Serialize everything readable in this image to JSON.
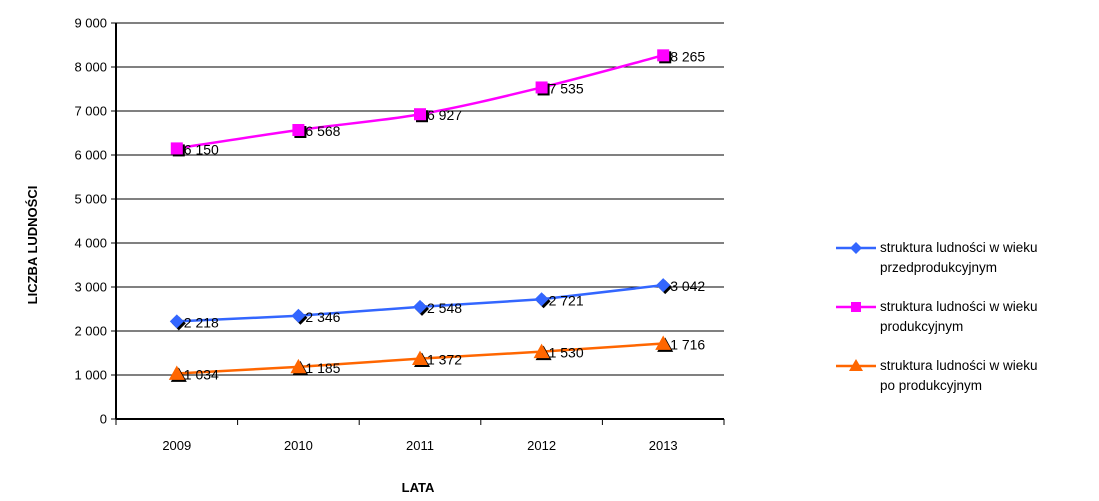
{
  "chart_data": {
    "type": "line",
    "title": "",
    "xlabel": "LATA",
    "ylabel": "LICZBA LUDNOŚCI",
    "categories": [
      "2009",
      "2010",
      "2011",
      "2012",
      "2013"
    ],
    "ylim": [
      0,
      9000
    ],
    "ytick_values": [
      0,
      1000,
      2000,
      3000,
      4000,
      5000,
      6000,
      7000,
      8000,
      9000
    ],
    "ytick_labels": [
      "0",
      "1 000",
      "2 000",
      "3 000",
      "4 000",
      "5 000",
      "6 000",
      "7 000",
      "8 000",
      "9 000"
    ],
    "grid": true,
    "legend_position": "right",
    "series": [
      {
        "name": "struktura ludności w wieku przedprodukcyjnym",
        "legend_lines": [
          "struktura ludności w wieku",
          "przedprodukcyjnym"
        ],
        "color": "#3366FF",
        "marker": "diamond",
        "values": [
          2218,
          2346,
          2548,
          2721,
          3042
        ],
        "labels": [
          "2 218",
          "2 346",
          "2 548",
          "2 721",
          "3 042"
        ]
      },
      {
        "name": "struktura ludności w wieku produkcyjnym",
        "legend_lines": [
          "struktura ludności w wieku",
          "produkcyjnym"
        ],
        "color": "#FF00FF",
        "marker": "square",
        "values": [
          6150,
          6568,
          6927,
          7535,
          8265
        ],
        "labels": [
          "6 150",
          "6 568",
          "6 927",
          "7 535",
          "8 265"
        ]
      },
      {
        "name": "struktura ludności w wieku po produkcyjnym",
        "legend_lines": [
          "struktura ludności w wieku",
          "po produkcyjnym"
        ],
        "color": "#FF6600",
        "marker": "triangle",
        "values": [
          1034,
          1185,
          1372,
          1530,
          1716
        ],
        "labels": [
          "1 034",
          "1 185",
          "1 372",
          "1 530",
          "1 716"
        ]
      }
    ]
  }
}
